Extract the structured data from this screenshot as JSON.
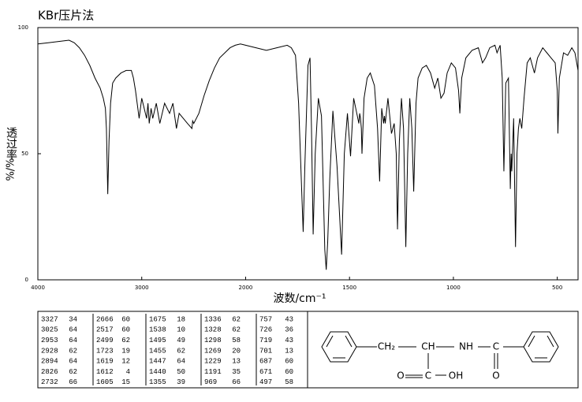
{
  "chart_data": {
    "type": "line",
    "title": "KBr压片法",
    "y_label": "透过率",
    "y_unit": "%/%",
    "x_label": "波数/cm⁻¹",
    "x_scale": "piecewise-by-ticks",
    "color": "#000000",
    "xlim": [
      4000,
      400
    ],
    "xticks": [
      4000,
      3000,
      2000,
      1500,
      1000,
      500
    ],
    "ylim": [
      0,
      100
    ],
    "yticks": [
      0,
      50,
      100
    ],
    "x": [
      4000,
      3900,
      3800,
      3700,
      3650,
      3600,
      3550,
      3500,
      3450,
      3400,
      3370,
      3350,
      3340,
      3327,
      3315,
      3300,
      3280,
      3250,
      3200,
      3150,
      3100,
      3080,
      3060,
      3025,
      3000,
      2953,
      2940,
      2928,
      2910,
      2894,
      2860,
      2826,
      2780,
      2732,
      2700,
      2666,
      2640,
      2600,
      2560,
      2517,
      2510,
      2499,
      2450,
      2400,
      2350,
      2300,
      2250,
      2200,
      2150,
      2100,
      2050,
      2000,
      1950,
      1900,
      1850,
      1800,
      1780,
      1760,
      1745,
      1730,
      1723,
      1715,
      1700,
      1690,
      1683,
      1675,
      1665,
      1650,
      1635,
      1619,
      1612,
      1605,
      1595,
      1580,
      1560,
      1538,
      1525,
      1510,
      1495,
      1480,
      1465,
      1455,
      1451,
      1447,
      1443,
      1440,
      1430,
      1415,
      1400,
      1380,
      1365,
      1355,
      1345,
      1336,
      1332,
      1328,
      1315,
      1298,
      1285,
      1275,
      1269,
      1260,
      1250,
      1240,
      1229,
      1220,
      1210,
      1200,
      1191,
      1180,
      1170,
      1150,
      1130,
      1110,
      1090,
      1075,
      1060,
      1045,
      1030,
      1010,
      990,
      975,
      969,
      960,
      940,
      910,
      880,
      860,
      845,
      825,
      800,
      790,
      775,
      765,
      757,
      748,
      735,
      726,
      722,
      719,
      710,
      701,
      694,
      687,
      680,
      671,
      660,
      645,
      630,
      610,
      595,
      570,
      550,
      530,
      510,
      500,
      497,
      490,
      470,
      450,
      430,
      415,
      400
    ],
    "values": [
      93.5,
      94,
      94.5,
      95,
      94,
      92,
      89,
      85,
      80,
      76,
      72,
      68,
      60,
      34,
      55,
      70,
      78,
      80,
      82,
      83,
      83,
      80,
      75,
      64,
      72,
      64,
      70,
      62,
      68,
      64,
      70,
      62,
      70,
      66,
      70,
      60,
      66,
      64,
      62,
      60,
      63,
      62,
      66,
      73,
      79,
      84,
      88,
      90,
      92,
      93,
      93.5,
      93,
      92,
      91,
      92,
      93,
      92,
      89,
      70,
      35,
      19,
      45,
      85,
      88,
      60,
      18,
      50,
      72,
      65,
      12,
      4,
      15,
      40,
      67,
      45,
      10,
      50,
      66,
      49,
      72,
      66,
      62,
      66,
      64,
      60,
      50,
      72,
      80,
      82,
      77,
      60,
      39,
      68,
      62,
      65,
      62,
      72,
      58,
      62,
      50,
      20,
      55,
      72,
      60,
      13,
      50,
      72,
      60,
      35,
      70,
      80,
      84,
      85,
      82,
      76,
      80,
      72,
      74,
      82,
      86,
      84,
      75,
      66,
      80,
      88,
      91,
      92,
      86,
      88,
      92,
      93,
      90,
      93,
      80,
      43,
      78,
      80,
      36,
      50,
      43,
      64,
      13,
      50,
      60,
      64,
      60,
      72,
      86,
      88,
      82,
      88,
      92,
      90,
      88,
      86,
      75,
      58,
      80,
      90,
      89,
      92,
      90,
      83
    ]
  },
  "peak_table": {
    "rows": [
      [
        3327,
        34,
        2666,
        60,
        1675,
        18,
        1336,
        62,
        757,
        43
      ],
      [
        3025,
        64,
        2517,
        60,
        1538,
        10,
        1328,
        62,
        726,
        36
      ],
      [
        2953,
        64,
        2499,
        62,
        1495,
        49,
        1298,
        58,
        719,
        43
      ],
      [
        2928,
        62,
        1723,
        19,
        1455,
        62,
        1269,
        20,
        701,
        13
      ],
      [
        2894,
        64,
        1619,
        12,
        1447,
        64,
        1229,
        13,
        687,
        60
      ],
      [
        2826,
        62,
        1612,
        4,
        1440,
        50,
        1191,
        35,
        671,
        60
      ],
      [
        2732,
        66,
        1605,
        15,
        1355,
        39,
        969,
        66,
        497,
        58
      ]
    ]
  },
  "structure": {
    "labels": [
      "CH₂",
      "CH",
      "NH",
      "C",
      "O",
      "C",
      "OH",
      "O"
    ]
  }
}
